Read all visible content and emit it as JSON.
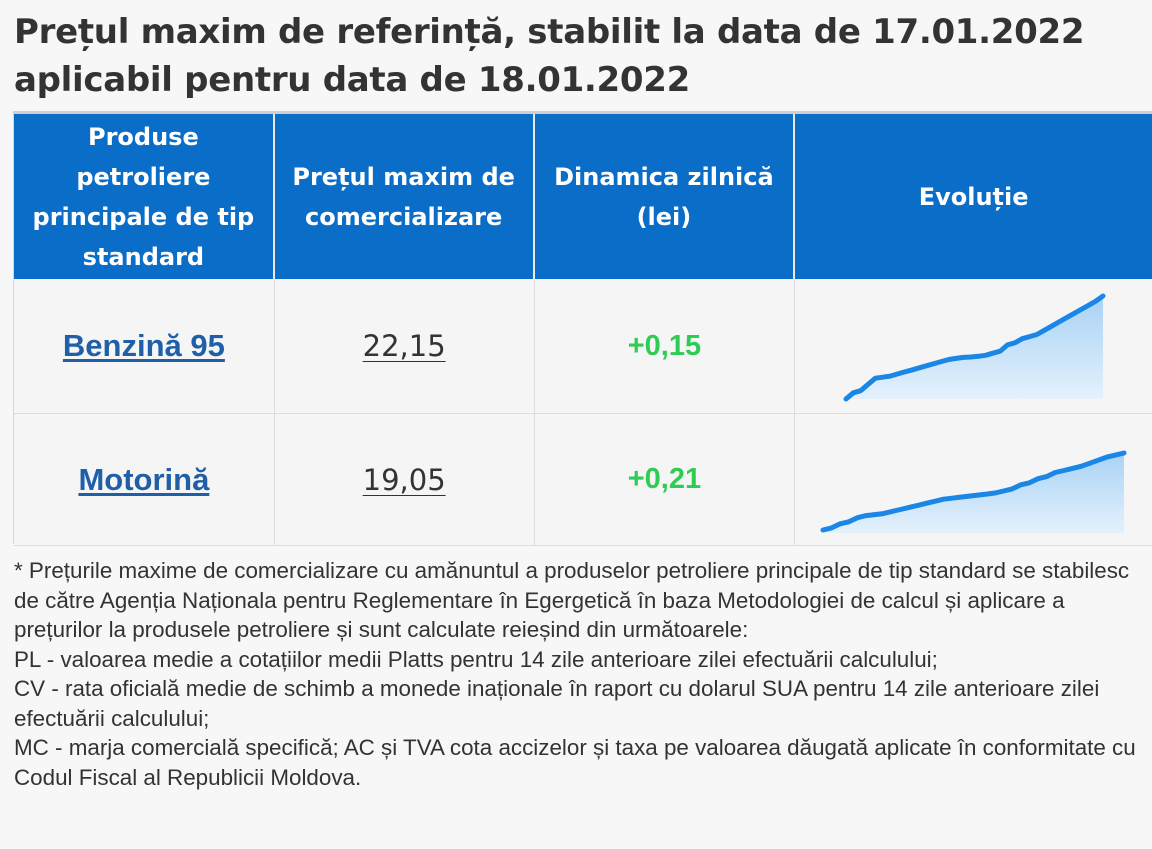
{
  "title": {
    "line1": "Prețul maxim de referință, stabilit la data de 17.01.2022",
    "line2": "aplicabil pentru data de 18.01.2022"
  },
  "table": {
    "headers": [
      "Produse petroliere principale de tip standard",
      "Prețul maxim de comercializare",
      "Dinamica zilnică (lei)",
      "Evoluție"
    ],
    "rows": [
      {
        "product": "Benzină 95",
        "price": "22,15",
        "delta": "+0,15",
        "trend": [
          17.2,
          17.5,
          17.6,
          17.9,
          18.2,
          18.25,
          18.3,
          18.4,
          18.5,
          18.6,
          18.7,
          18.8,
          18.9,
          19.0,
          19.1,
          19.15,
          19.2,
          19.22,
          19.25,
          19.3,
          19.4,
          19.5,
          19.8,
          19.9,
          20.1,
          20.2,
          20.3,
          20.5,
          20.7,
          20.9,
          21.1,
          21.3,
          21.5,
          21.7,
          21.9,
          22.15
        ]
      },
      {
        "product": "Motorină",
        "price": "19,05",
        "delta": "+0,21",
        "trend": [
          15.3,
          15.4,
          15.6,
          15.7,
          15.9,
          16.0,
          16.05,
          16.1,
          16.2,
          16.3,
          16.4,
          16.5,
          16.6,
          16.7,
          16.8,
          16.85,
          16.9,
          16.95,
          17.0,
          17.05,
          17.1,
          17.2,
          17.3,
          17.5,
          17.6,
          17.8,
          17.9,
          18.1,
          18.2,
          18.3,
          18.4,
          18.55,
          18.7,
          18.85,
          18.95,
          19.05
        ]
      }
    ]
  },
  "colors": {
    "header_bg": "#0a6ec9",
    "link": "#1f5fa8",
    "delta_positive": "#2ecc55",
    "spark_line": "#1a86e6",
    "spark_fill": "#a9d2f5"
  },
  "footnote": [
    "* Prețurile maxime de comercializare cu amănuntul a produselor petroliere principale de tip standard se stabilesc de către Agenția Naționala pentru Reglementare în Egergetică în baza Metodologiei de calcul și aplicare a prețurilor la produsele petroliere și sunt calculate reieșind din următoarele:",
    "PL - valoarea medie a cotațiilor medii Platts pentru 14 zile anterioare zilei efectuării calculului;",
    "CV - rata oficială medie de schimb a monede inaționale în raport cu dolarul SUA pentru 14 zile anterioare zilei efectuării calculului;",
    "MC - marja comercială specifică; AC și TVA cota accizelor și taxa pe valoarea dăugată aplicate în conformitate cu Codul Fiscal al Republicii Moldova."
  ]
}
